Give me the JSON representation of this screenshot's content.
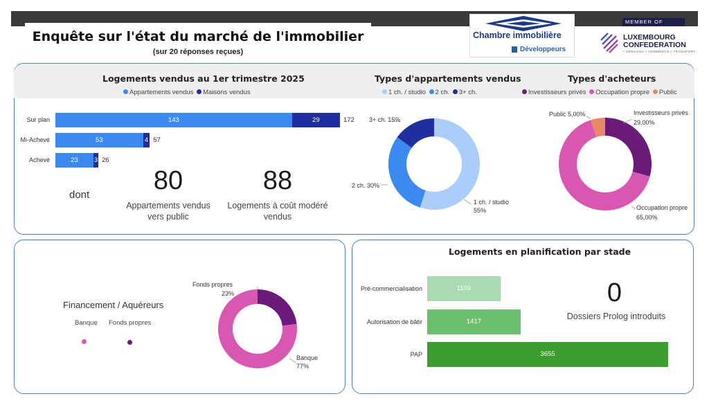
{
  "header": {
    "title": "Enquête sur l'état du marché de l'immobilier",
    "subtitle": "(sur 20 réponses reçues)"
  },
  "logos": {
    "chambre_name": "Chambre immobilière",
    "chambre_sub": "Développeurs",
    "member_of": "MEMBER OF",
    "lux_line1": "LUXEMBOURG",
    "lux_line2": "CONFEDERATION",
    "lux_tagline": "• SERVICES • COMMERCE • TRANSPORT"
  },
  "summary": {
    "dont": "dont",
    "stat1_value": "80",
    "stat1_caption_1": "Appartements vendus",
    "stat1_caption_2": "vers public",
    "stat2_value": "88",
    "stat2_caption_1": "Logements à coût modéré",
    "stat2_caption_2": "vendus"
  },
  "planning_stat": {
    "value": "0",
    "caption": "Dossiers Prolog introduits"
  },
  "chart_data": [
    {
      "type": "bar",
      "orientation": "horizontal",
      "stacked": true,
      "title": "Logements vendus au 1er trimestre 2025",
      "categories": [
        "Sur plan",
        "Mi-Achevé",
        "Achevé"
      ],
      "series": [
        {
          "name": "Appartements vendus",
          "values": [
            143,
            53,
            23
          ],
          "color": "#3b8af0"
        },
        {
          "name": "Maisons vendus",
          "values": [
            29,
            4,
            3
          ],
          "color": "#1f2fa0"
        }
      ],
      "totals": [
        172,
        57,
        26
      ],
      "data_labels": [
        "143",
        "29",
        "53",
        "4",
        "23",
        "",
        "172",
        "57",
        "26"
      ],
      "legend_position": "top"
    },
    {
      "type": "pie",
      "donut": true,
      "title": "Types d'appartements vendus",
      "legend": [
        "1 ch. / studio",
        "2 ch.",
        "3+ ch."
      ],
      "labels": [
        "1 ch. / studio",
        "2 ch.",
        "3+ ch."
      ],
      "values": [
        55,
        30,
        15
      ],
      "label_texts": [
        "1 ch. / studio",
        "55%",
        "2 ch. 30%",
        "3+ ch. 15%"
      ],
      "colors": [
        "#aacdfa",
        "#3b8af0",
        "#1f2fa0"
      ],
      "legend_position": "top"
    },
    {
      "type": "pie",
      "donut": true,
      "title": "Types d'acheteurs",
      "legend": [
        "Investisseurs privés",
        "Occupation propre",
        "Public"
      ],
      "labels": [
        "Investisseurs privés",
        "Occupation propre",
        "Public"
      ],
      "values": [
        29,
        65,
        5
      ],
      "label_texts": [
        "Investisseurs privés",
        "29,00%",
        "Occupation propre",
        "65,00%",
        "Public 5,00%"
      ],
      "colors": [
        "#6a1b7a",
        "#d957b0",
        "#e8896a"
      ],
      "legend_position": "top"
    },
    {
      "type": "pie",
      "donut": true,
      "title": "Financement / Aquéreurs",
      "legend": [
        "Banque",
        "Fonds propres"
      ],
      "labels": [
        "Banque",
        "Fonds propres"
      ],
      "values": [
        77,
        23
      ],
      "label_texts": [
        "Fonds propres",
        "23%",
        "Banque",
        "77%"
      ],
      "colors": [
        "#d957b0",
        "#6a1b7a"
      ],
      "legend_position": "left"
    },
    {
      "type": "bar",
      "orientation": "horizontal",
      "title": "Logements en planification par stade",
      "categories": [
        "Pré-commercialisation",
        "Autorisation de bâtir",
        "PAP"
      ],
      "values": [
        1109,
        1417,
        3655
      ],
      "data_labels": [
        "1109",
        "1417",
        "3655"
      ],
      "colors": [
        "#a8dbb0",
        "#6cbf6c",
        "#3a9d2e"
      ]
    }
  ]
}
